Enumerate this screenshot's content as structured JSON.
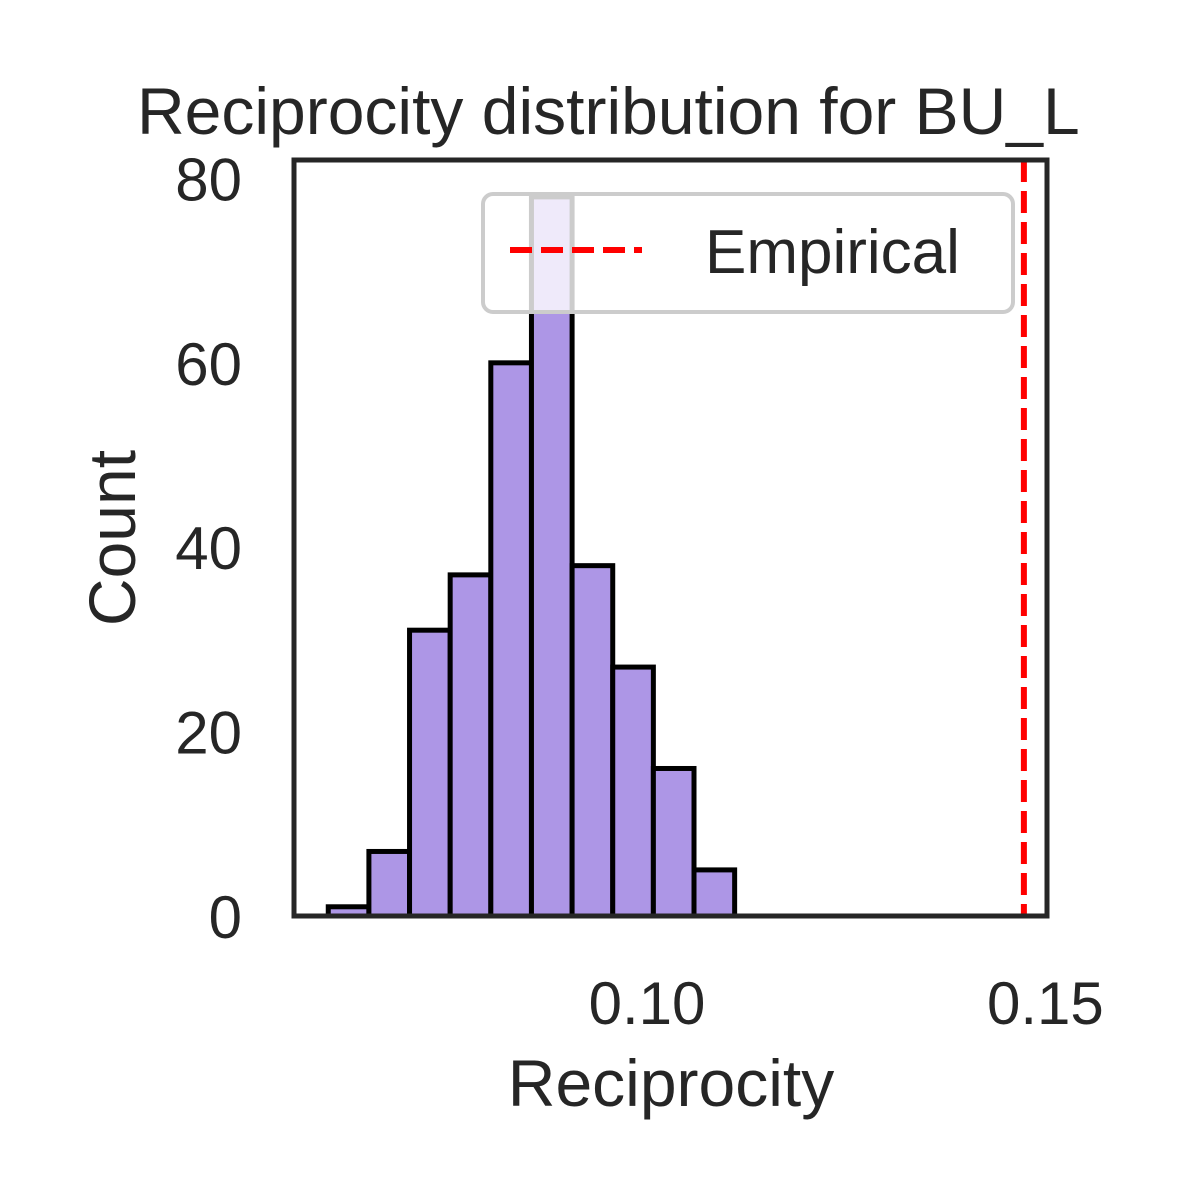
{
  "chart_data": {
    "type": "bar",
    "title": "Reciprocity distribution for BU_L",
    "xlabel": "Reciprocity",
    "ylabel": "Count",
    "xlim": [
      0.0557,
      0.1502
    ],
    "ylim": [
      0,
      82
    ],
    "xticks": [
      0.1,
      0.15
    ],
    "xtick_labels": [
      "0.10",
      "0.15"
    ],
    "yticks": [
      0,
      20,
      40,
      60,
      80
    ],
    "ytick_labels": [
      "0",
      "20",
      "40",
      "60",
      "80"
    ],
    "grid": false,
    "legend": {
      "position": "top-right",
      "entries": [
        "Empirical"
      ]
    },
    "bins": [
      {
        "x0": 0.06,
        "x1": 0.0651,
        "count": 1
      },
      {
        "x0": 0.0651,
        "x1": 0.0702,
        "count": 7
      },
      {
        "x0": 0.0702,
        "x1": 0.0753,
        "count": 31
      },
      {
        "x0": 0.0753,
        "x1": 0.0804,
        "count": 37
      },
      {
        "x0": 0.0804,
        "x1": 0.0855,
        "count": 60
      },
      {
        "x0": 0.0855,
        "x1": 0.0906,
        "count": 78
      },
      {
        "x0": 0.0906,
        "x1": 0.0957,
        "count": 38
      },
      {
        "x0": 0.0957,
        "x1": 0.1008,
        "count": 27
      },
      {
        "x0": 0.1008,
        "x1": 0.1059,
        "count": 16
      },
      {
        "x0": 0.1059,
        "x1": 0.111,
        "count": 5
      }
    ],
    "empirical": {
      "name": "Empirical",
      "x": 0.1473
    },
    "colors": {
      "bar_fill": "#ad96e6",
      "bar_edge": "#000000",
      "empirical_line": "#ff0000",
      "axes_edge": "#262626",
      "text": "#262626"
    }
  }
}
